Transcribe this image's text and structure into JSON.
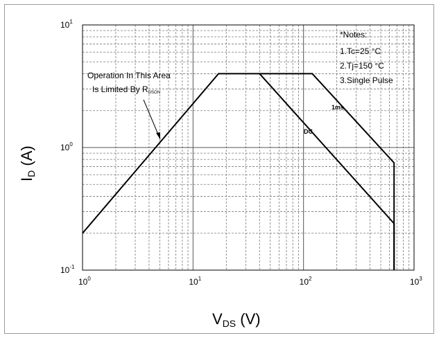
{
  "chart_data": {
    "type": "line",
    "x_scale": "log",
    "y_scale": "log",
    "xlim": [
      1,
      1000
    ],
    "ylim": [
      0.1,
      10
    ],
    "grid": true,
    "x_ticks": [
      {
        "base": "10",
        "exp": "0"
      },
      {
        "base": "10",
        "exp": "1"
      },
      {
        "base": "10",
        "exp": "2"
      },
      {
        "base": "10",
        "exp": "3"
      }
    ],
    "y_ticks": [
      {
        "base": "10",
        "exp": "1"
      },
      {
        "base": "10",
        "exp": "0"
      },
      {
        "base": "10",
        "exp": "-1"
      }
    ],
    "xlabel": {
      "main": "V",
      "sub": "DS",
      "suffix": " (V)"
    },
    "ylabel": {
      "main": "I",
      "sub": "D",
      "suffix": " (A)"
    },
    "series": [
      {
        "name": "DC",
        "x": [
          1,
          17,
          40,
          660,
          660
        ],
        "y": [
          0.2,
          4,
          4,
          0.24,
          0.1
        ]
      },
      {
        "name": "1ms",
        "x": [
          40,
          120,
          660,
          660
        ],
        "y": [
          4,
          4,
          0.75,
          0.1
        ]
      }
    ],
    "annotations": {
      "rdson_line1": "Operation In This Area",
      "rdson_line2_main": "Is Limited By R",
      "rdson_line2_sub": "DSON",
      "notes": [
        "*Notes:",
        "1.Tc=25 °C",
        "2.Tj=150 °C",
        "3.Single Pulse"
      ]
    }
  }
}
